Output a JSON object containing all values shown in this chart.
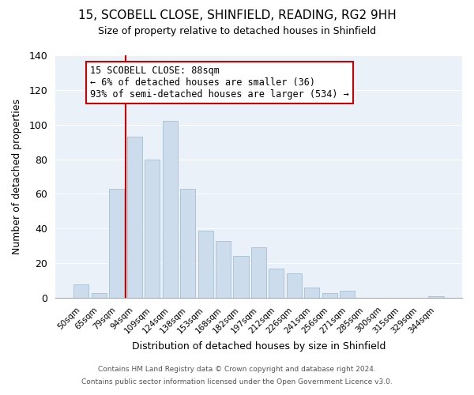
{
  "title": "15, SCOBELL CLOSE, SHINFIELD, READING, RG2 9HH",
  "subtitle": "Size of property relative to detached houses in Shinfield",
  "xlabel": "Distribution of detached houses by size in Shinfield",
  "ylabel": "Number of detached properties",
  "footer1": "Contains HM Land Registry data © Crown copyright and database right 2024.",
  "footer2": "Contains public sector information licensed under the Open Government Licence v3.0.",
  "bin_labels": [
    "50sqm",
    "65sqm",
    "79sqm",
    "94sqm",
    "109sqm",
    "124sqm",
    "138sqm",
    "153sqm",
    "168sqm",
    "182sqm",
    "197sqm",
    "212sqm",
    "226sqm",
    "241sqm",
    "256sqm",
    "271sqm",
    "285sqm",
    "300sqm",
    "315sqm",
    "329sqm",
    "344sqm"
  ],
  "bar_heights": [
    8,
    3,
    63,
    93,
    80,
    102,
    63,
    39,
    33,
    24,
    29,
    17,
    14,
    6,
    3,
    4,
    0,
    0,
    0,
    0,
    1
  ],
  "bar_color": "#ccdcec",
  "bar_edgecolor": "#adc4d8",
  "vline_color": "#cc0000",
  "annotation_title": "15 SCOBELL CLOSE: 88sqm",
  "annotation_line1": "← 6% of detached houses are smaller (36)",
  "annotation_line2": "93% of semi-detached houses are larger (534) →",
  "annotation_box_edgecolor": "#cc0000",
  "ylim": [
    0,
    140
  ],
  "yticks": [
    0,
    20,
    40,
    60,
    80,
    100,
    120,
    140
  ],
  "background_color": "#ffffff",
  "plot_bg_color": "#eaf1f8",
  "grid_color": "#ffffff"
}
